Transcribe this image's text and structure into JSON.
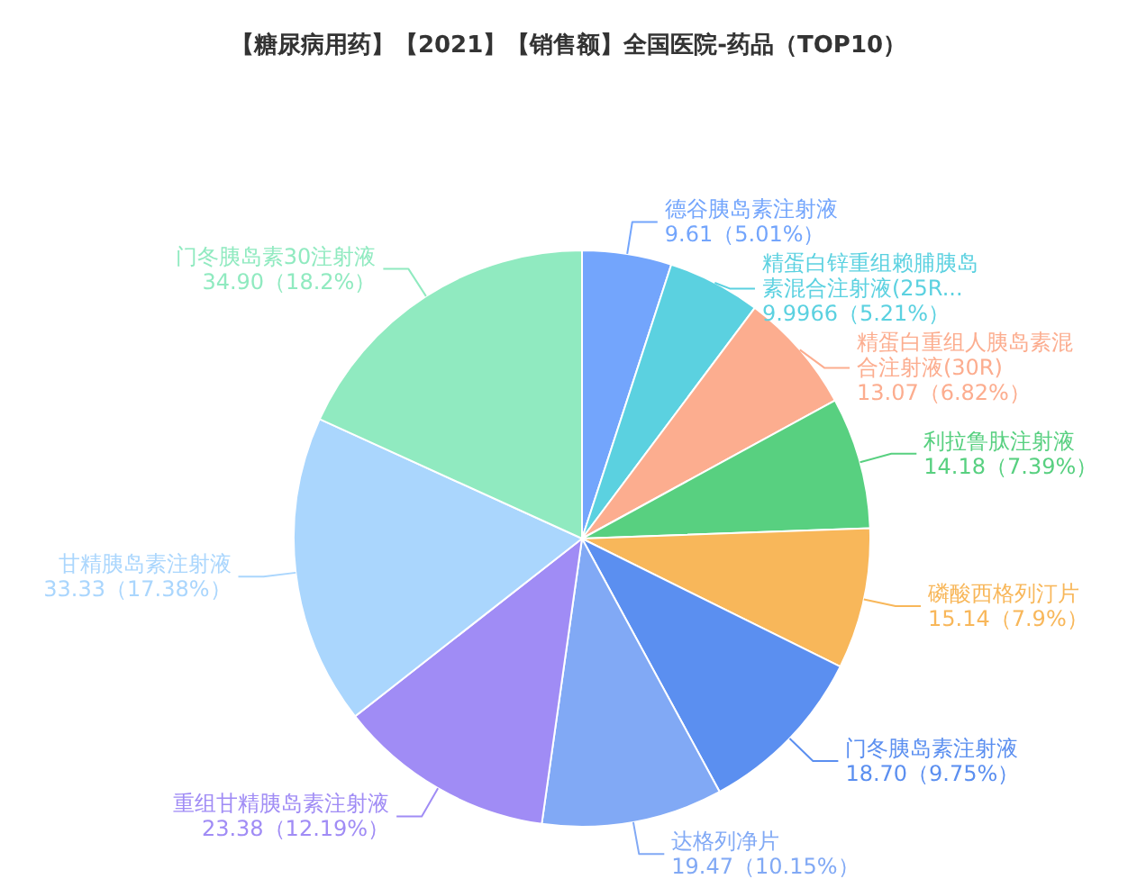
{
  "chart_data": {
    "type": "pie",
    "title": "【糖尿病用药】【2021】【销售额】全国医院-药品（TOP10）",
    "categories": [
      "德谷胰岛素注射液",
      "精蛋白锌重组赖脯胰岛素混合注射液(25R...",
      "精蛋白重组人胰岛素混合注射液(30R)",
      "利拉鲁肽注射液",
      "磷酸西格列汀片",
      "门冬胰岛素注射液",
      "达格列净片",
      "重组甘精胰岛素注射液",
      "甘精胰岛素注射液",
      "门冬胰岛素30注射液"
    ],
    "values": [
      9.61,
      9.9966,
      13.07,
      14.18,
      15.14,
      18.7,
      19.47,
      23.38,
      33.33,
      34.9
    ],
    "value_labels": [
      "9.61（5.01%）",
      "9.9966（5.21%）",
      "13.07（6.82%）",
      "14.18（7.39%）",
      "15.14（7.9%）",
      "18.70（9.75%）",
      "19.47（10.15%）",
      "23.38（12.19%）",
      "33.33（17.38%）",
      "34.90（18.2%）"
    ],
    "colors": [
      "#73a5fc",
      "#5bd1e0",
      "#fcad8f",
      "#58d080",
      "#f8b75a",
      "#5b8ff0",
      "#81a9f5",
      "#a08cf5",
      "#aad6fd",
      "#90eac0"
    ]
  }
}
